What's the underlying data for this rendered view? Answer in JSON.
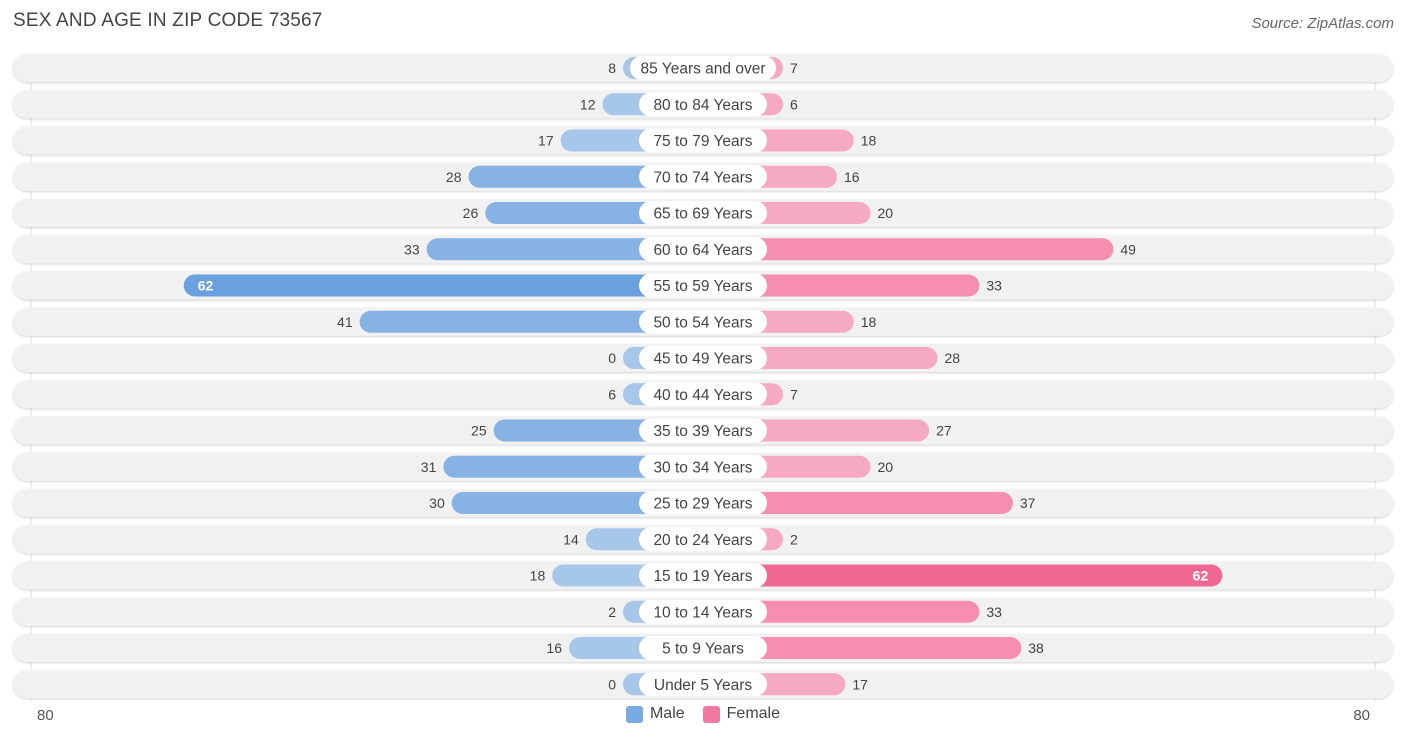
{
  "title": "SEX AND AGE IN ZIP CODE 73567",
  "source": "Source: ZipAtlas.com",
  "colors": {
    "male_light": "#a6c6ea",
    "male_dark": "#6aa0de",
    "female_light": "#f5a9c2",
    "female_dark": "#f06892",
    "row_bg": "#f1f1f1"
  },
  "axis": {
    "left_label": "80",
    "right_label": "80"
  },
  "legend": [
    {
      "label": "Male",
      "color": "#7aaae2"
    },
    {
      "label": "Female",
      "color": "#f27aa0"
    }
  ],
  "chart_data": {
    "type": "bar",
    "orientation": "horizontal-diverging",
    "title": "SEX AND AGE IN ZIP CODE 73567",
    "xlim": [
      0,
      80
    ],
    "categories": [
      "85 Years and over",
      "80 to 84 Years",
      "75 to 79 Years",
      "70 to 74 Years",
      "65 to 69 Years",
      "60 to 64 Years",
      "55 to 59 Years",
      "50 to 54 Years",
      "45 to 49 Years",
      "40 to 44 Years",
      "35 to 39 Years",
      "30 to 34 Years",
      "25 to 29 Years",
      "20 to 24 Years",
      "15 to 19 Years",
      "10 to 14 Years",
      "5 to 9 Years",
      "Under 5 Years"
    ],
    "series": [
      {
        "name": "Male",
        "values": [
          8,
          12,
          17,
          28,
          26,
          33,
          62,
          41,
          0,
          6,
          25,
          31,
          30,
          14,
          18,
          2,
          16,
          0
        ]
      },
      {
        "name": "Female",
        "values": [
          7,
          6,
          18,
          16,
          20,
          49,
          33,
          18,
          28,
          7,
          27,
          20,
          37,
          2,
          62,
          33,
          38,
          17
        ]
      }
    ],
    "legend_position": "bottom-center"
  }
}
